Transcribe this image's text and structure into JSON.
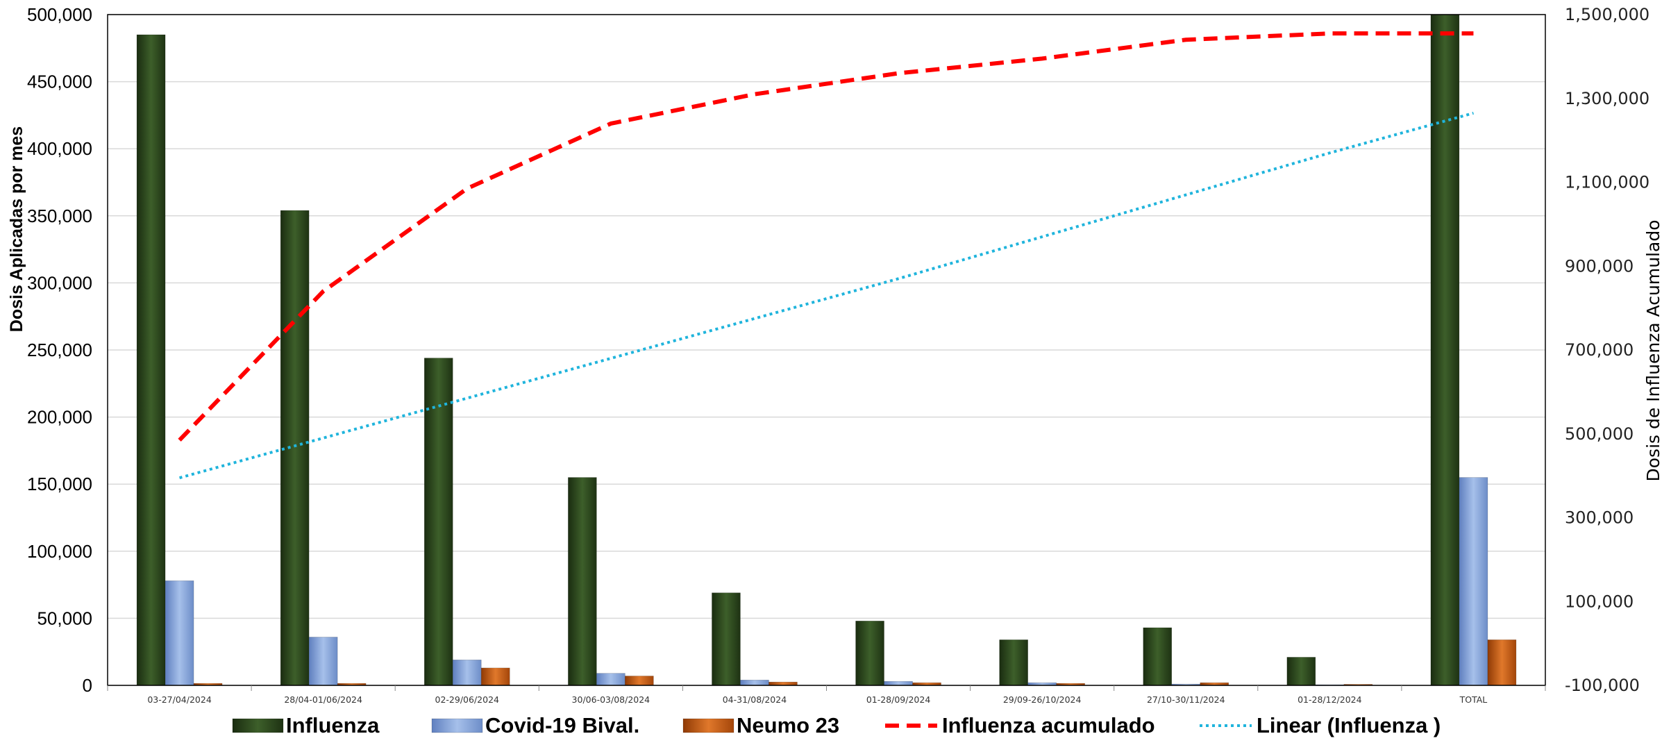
{
  "chart_data": {
    "type": "bar",
    "title": "",
    "xlabel": "",
    "ylabel": "Dosis Aplicadas por mes",
    "y2label": "Dosis de Influenza Acumulado",
    "ylim": [
      0,
      500000
    ],
    "y2lim": [
      -100000,
      1500000
    ],
    "yticks": [
      "0",
      "50,000",
      "100,000",
      "150,000",
      "200,000",
      "250,000",
      "300,000",
      "350,000",
      "400,000",
      "450,000",
      "500,000"
    ],
    "y2ticks": [
      "-100,000",
      "100,000",
      "300,000",
      "500,000",
      "700,000",
      "900,000",
      "1,100,000",
      "1,300,000",
      "1,500,000"
    ],
    "categories": [
      "03-27/04/2024",
      "28/04-01/06/2024",
      "02-29/06/2024",
      "30/06-03/08/2024",
      "04-31/08/2024",
      "01-28/09/2024",
      "29/09-26/10/2024",
      "27/10-30/11/2024",
      "01-28/12/2024",
      "TOTAL"
    ],
    "series": [
      {
        "name": "Influenza",
        "type": "bar",
        "axis": "left",
        "color": "#2d4a1e",
        "values": [
          485000,
          354000,
          244000,
          155000,
          69000,
          48000,
          34000,
          43000,
          21000,
          500000
        ]
      },
      {
        "name": "Covid-19 Bival.",
        "type": "bar",
        "axis": "left",
        "color": "#7f9fd4",
        "values": [
          78000,
          36000,
          19000,
          9000,
          4000,
          3000,
          2000,
          1000,
          500,
          155000
        ]
      },
      {
        "name": "Neumo 23",
        "type": "bar",
        "axis": "left",
        "color": "#c55a11",
        "values": [
          1500,
          1500,
          13000,
          7000,
          2500,
          2000,
          1500,
          2000,
          800,
          34000
        ]
      },
      {
        "name": "Influenza acumulado",
        "type": "line",
        "axis": "right",
        "style": "dashed",
        "color": "#ff0000",
        "values": [
          485000,
          840000,
          1085000,
          1240000,
          1310000,
          1360000,
          1395000,
          1440000,
          1455000,
          1455000
        ]
      },
      {
        "name": "Linear (Influenza )",
        "type": "line",
        "axis": "right",
        "style": "dotted",
        "color": "#1fb4dc",
        "values": [
          395000,
          490000,
          585000,
          680000,
          775000,
          870000,
          970000,
          1070000,
          1170000,
          1265000
        ]
      }
    ],
    "legend": "bottom",
    "grid": true
  }
}
